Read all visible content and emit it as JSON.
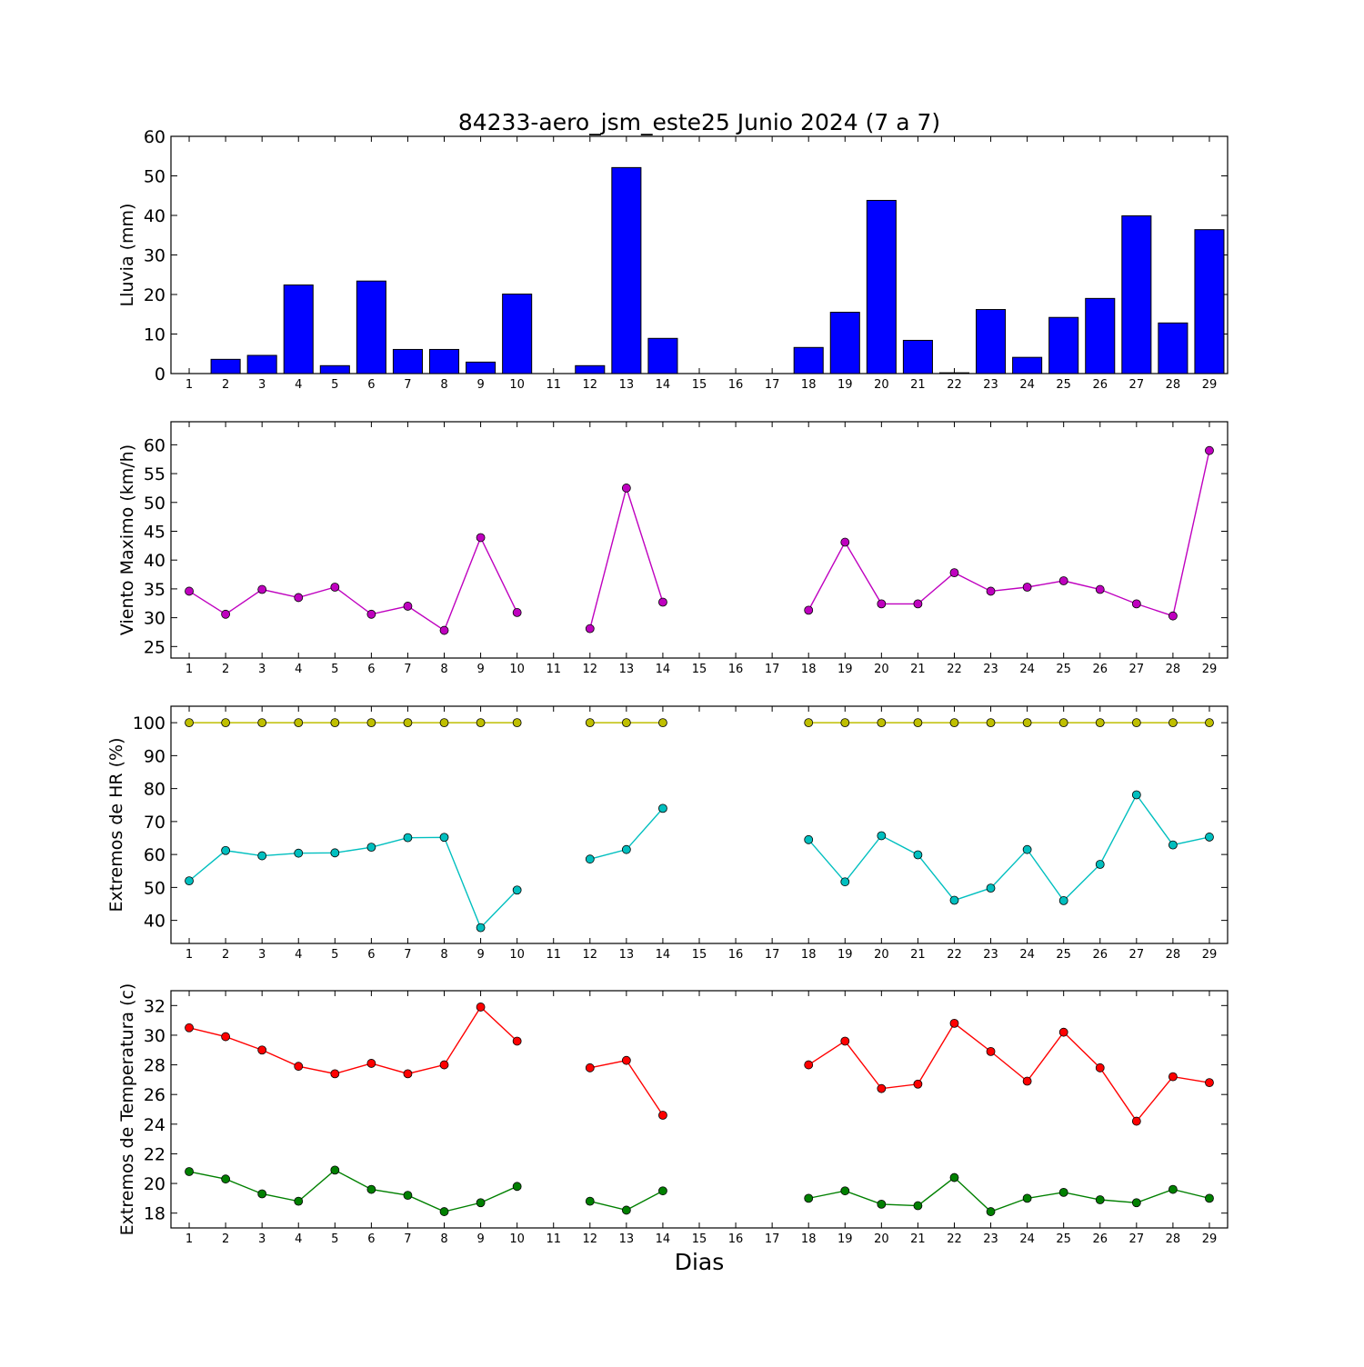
{
  "chart_data": {
    "title": "84233-aero_jsm_este25 Junio 2024  (7 a 7)",
    "xlabel": "Dias",
    "x_ticks": [
      1,
      2,
      3,
      4,
      5,
      6,
      7,
      8,
      9,
      10,
      11,
      12,
      13,
      14,
      15,
      16,
      17,
      18,
      19,
      20,
      21,
      22,
      23,
      24,
      25,
      26,
      27,
      28,
      29
    ],
    "panels": [
      {
        "type": "bar",
        "ylabel": "Lluvia (mm)",
        "ylim": [
          0,
          60
        ],
        "yticks": [
          0,
          10,
          20,
          30,
          40,
          50,
          60
        ],
        "series": [
          {
            "color": "#0000ff",
            "x": [
              1,
              2,
              3,
              4,
              5,
              6,
              7,
              8,
              9,
              10,
              11,
              12,
              13,
              14,
              15,
              16,
              17,
              18,
              19,
              20,
              21,
              22,
              23,
              24,
              25,
              26,
              27,
              28,
              29
            ],
            "values": [
              0,
              3.6,
              4.6,
              22.4,
              2,
              23.4,
              6.1,
              6.1,
              2.9,
              20.1,
              0,
              2,
              52.1,
              8.9,
              0,
              0,
              0,
              6.6,
              15.5,
              43.8,
              8.4,
              0.2,
              16.2,
              4.1,
              14.2,
              19,
              39.9,
              12.8,
              36.4
            ]
          }
        ]
      },
      {
        "type": "line",
        "ylabel": "Viento Maximo (km/h)",
        "ylim": [
          23,
          64
        ],
        "yticks": [
          25,
          30,
          35,
          40,
          45,
          50,
          55,
          60
        ],
        "series": [
          {
            "color": "#bf00bf",
            "x": [
              1,
              2,
              3,
              4,
              5,
              6,
              7,
              8,
              9,
              10,
              11,
              12,
              13,
              14,
              15,
              16,
              17,
              18,
              19,
              20,
              21,
              22,
              23,
              24,
              25,
              26,
              27,
              28,
              29
            ],
            "values": [
              34.6,
              30.6,
              34.9,
              33.5,
              35.3,
              30.6,
              32,
              27.8,
              43.9,
              30.9,
              null,
              28.1,
              52.5,
              32.7,
              null,
              null,
              null,
              31.3,
              43.1,
              32.4,
              32.4,
              37.8,
              34.6,
              35.3,
              36.4,
              34.9,
              32.4,
              30.3,
              59
            ]
          }
        ]
      },
      {
        "type": "line",
        "ylabel": "Extremos de HR (%)",
        "ylim": [
          33,
          105
        ],
        "yticks": [
          40,
          50,
          60,
          70,
          80,
          90,
          100
        ],
        "series": [
          {
            "color": "#bfbf00",
            "x": [
              1,
              2,
              3,
              4,
              5,
              6,
              7,
              8,
              9,
              10,
              11,
              12,
              13,
              14,
              15,
              16,
              17,
              18,
              19,
              20,
              21,
              22,
              23,
              24,
              25,
              26,
              27,
              28,
              29
            ],
            "values": [
              100,
              100,
              100,
              100,
              100,
              100,
              100,
              100,
              100,
              100,
              null,
              100,
              100,
              100,
              null,
              null,
              null,
              100,
              100,
              100,
              100,
              100,
              100,
              100,
              100,
              100,
              100,
              100,
              100
            ]
          },
          {
            "color": "#00bfbf",
            "x": [
              1,
              2,
              3,
              4,
              5,
              6,
              7,
              8,
              9,
              10,
              11,
              12,
              13,
              14,
              15,
              16,
              17,
              18,
              19,
              20,
              21,
              22,
              23,
              24,
              25,
              26,
              27,
              28,
              29
            ],
            "values": [
              52,
              61.2,
              59.6,
              60.4,
              60.5,
              62.2,
              65.1,
              65.2,
              37.8,
              49.2,
              null,
              58.6,
              61.5,
              74,
              null,
              null,
              null,
              64.5,
              51.7,
              65.7,
              59.9,
              46.1,
              49.8,
              61.5,
              46,
              57,
              78.1,
              62.9,
              65.3
            ]
          }
        ]
      },
      {
        "type": "line",
        "ylabel": "Extremos de Temperatura (c)",
        "ylim": [
          17,
          33
        ],
        "yticks": [
          18,
          20,
          22,
          24,
          26,
          28,
          30,
          32
        ],
        "series": [
          {
            "color": "#ff0000",
            "x": [
              1,
              2,
              3,
              4,
              5,
              6,
              7,
              8,
              9,
              10,
              11,
              12,
              13,
              14,
              15,
              16,
              17,
              18,
              19,
              20,
              21,
              22,
              23,
              24,
              25,
              26,
              27,
              28,
              29
            ],
            "values": [
              30.5,
              29.9,
              29,
              27.9,
              27.4,
              28.1,
              27.4,
              28,
              31.9,
              29.6,
              null,
              27.8,
              28.3,
              24.6,
              null,
              null,
              null,
              28,
              29.6,
              26.4,
              26.7,
              30.8,
              28.9,
              26.9,
              30.2,
              27.8,
              24.2,
              27.2,
              26.8
            ]
          },
          {
            "color": "#008000",
            "x": [
              1,
              2,
              3,
              4,
              5,
              6,
              7,
              8,
              9,
              10,
              11,
              12,
              13,
              14,
              15,
              16,
              17,
              18,
              19,
              20,
              21,
              22,
              23,
              24,
              25,
              26,
              27,
              28,
              29
            ],
            "values": [
              20.8,
              20.3,
              19.3,
              18.8,
              20.9,
              19.6,
              19.2,
              18.1,
              18.7,
              19.8,
              null,
              18.8,
              18.2,
              19.5,
              null,
              null,
              null,
              19,
              19.5,
              18.6,
              18.5,
              20.4,
              18.1,
              19,
              19.4,
              18.9,
              18.7,
              19.6,
              19
            ]
          }
        ]
      }
    ]
  }
}
